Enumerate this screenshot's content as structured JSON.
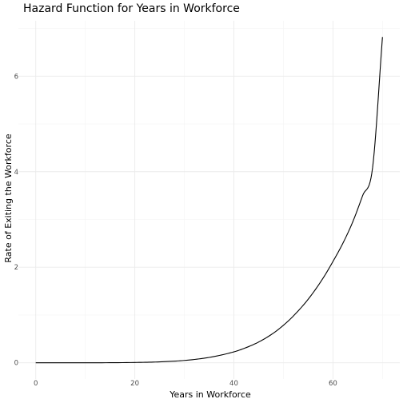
{
  "chart_data": {
    "type": "line",
    "title": "Hazard Function for Years in Workforce",
    "xlabel": "Years in Workforce",
    "ylabel": "Rate of Exiting the Workforce",
    "xlim": [
      -3.5,
      73.5
    ],
    "ylim": [
      -0.34,
      7.16
    ],
    "x_ticks": [
      0,
      20,
      40,
      60
    ],
    "y_ticks": [
      0,
      2,
      4,
      6
    ],
    "x_minor_ticks": [
      10,
      30,
      50,
      70
    ],
    "y_minor_ticks": [
      1,
      3,
      5,
      7
    ],
    "grid": true,
    "legend": "none",
    "series": [
      {
        "x": [
          0,
          10,
          20,
          25,
          30,
          35,
          40,
          42,
          45,
          48,
          50,
          52,
          55,
          58,
          60,
          62,
          64,
          66,
          68,
          70
        ],
        "values": [
          0,
          0.0002,
          0.0065,
          0.019,
          0.049,
          0.112,
          0.228,
          0.298,
          0.434,
          0.622,
          0.785,
          0.978,
          1.33,
          1.77,
          2.12,
          2.5,
          2.95,
          3.5,
          4.08,
          6.82
        ]
      }
    ]
  }
}
